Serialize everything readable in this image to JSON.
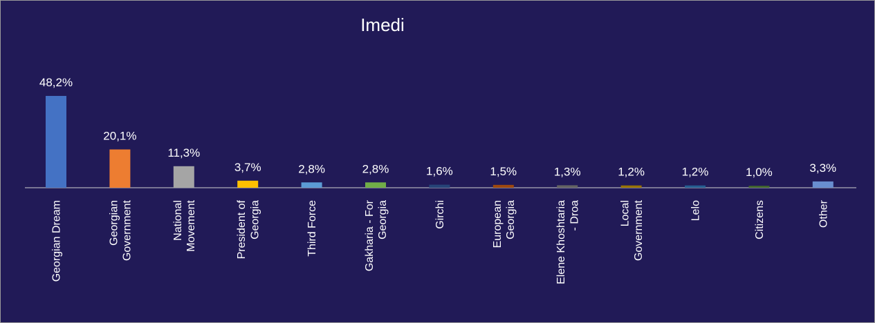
{
  "chart_data": {
    "type": "bar",
    "title": "Imedi",
    "categories": [
      "Georgian Dream",
      "Georgian\nGovernment",
      "National\nMovement",
      "President of\nGeorgia",
      "Third Force",
      "Gakharia - For\nGeorgia",
      "Girchi",
      "European\nGeorgia",
      "Elene Khoshtaria\n- Droa",
      "Local\nGovernment",
      "Lelo",
      "Citizens",
      "Other"
    ],
    "values": [
      48.2,
      20.1,
      11.3,
      3.7,
      2.8,
      2.8,
      1.6,
      1.5,
      1.3,
      1.2,
      1.2,
      1.0,
      3.3
    ],
    "value_labels": [
      "48,2%",
      "20,1%",
      "11,3%",
      "3,7%",
      "2,8%",
      "2,8%",
      "1,6%",
      "1,5%",
      "1,3%",
      "1,2%",
      "1,2%",
      "1,0%",
      "3,3%"
    ],
    "colors": [
      "#4472c4",
      "#ed7d31",
      "#a5a5a5",
      "#ffc000",
      "#5b9bd5",
      "#70ad47",
      "#264478",
      "#9e480e",
      "#636363",
      "#997300",
      "#255e91",
      "#43682b",
      "#698ed0"
    ]
  }
}
